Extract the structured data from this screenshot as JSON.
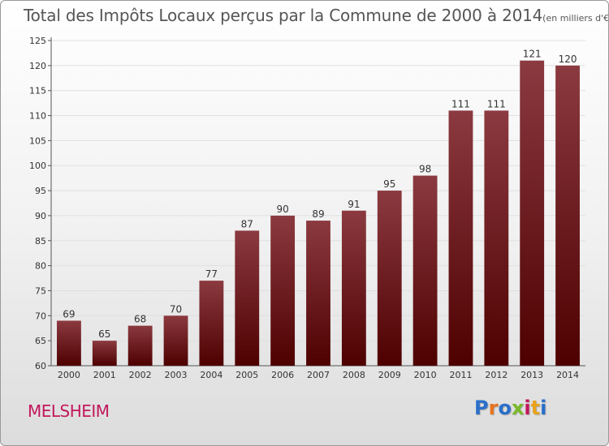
{
  "title": "Total des Impôts Locaux perçus par la Commune de 2000 à 2014",
  "unit": "(en milliers d'€)",
  "commune": "MELSHEIM",
  "logo": {
    "letters": [
      "P",
      "r",
      "o",
      "x",
      "i",
      "t",
      "i"
    ],
    "colors": [
      "#2a6fc9",
      "#e8731c",
      "#2a6fc9",
      "#79b928",
      "#c2185b",
      "#e8a21c",
      "#2a6fc9"
    ]
  },
  "colors": {
    "bar_light": "#8b3a40",
    "bar_dark": "#4e0000",
    "grid": "#e0e0e0"
  },
  "chart_data": {
    "type": "bar",
    "title": "Total des Impôts Locaux perçus par la Commune de 2000 à 2014",
    "subtitle": "(en milliers d'€)",
    "xlabel": "",
    "ylabel": "",
    "categories": [
      "2000",
      "2001",
      "2002",
      "2003",
      "2004",
      "2005",
      "2006",
      "2007",
      "2008",
      "2009",
      "2010",
      "2011",
      "2012",
      "2013",
      "2014"
    ],
    "values": [
      69,
      65,
      68,
      70,
      77,
      87,
      90,
      89,
      91,
      95,
      98,
      111,
      111,
      121,
      120
    ],
    "ylim": [
      60,
      125
    ],
    "yticks": [
      60,
      65,
      70,
      75,
      80,
      85,
      90,
      95,
      100,
      105,
      110,
      115,
      120,
      125
    ],
    "grid": true
  }
}
